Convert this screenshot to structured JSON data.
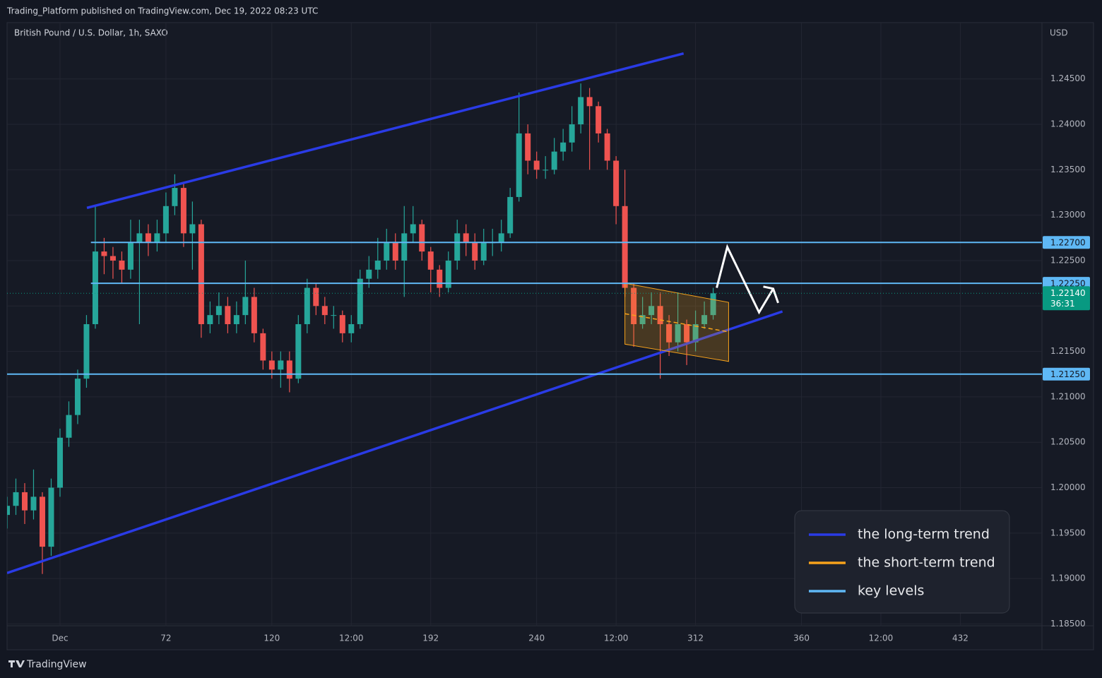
{
  "chart_data": {
    "type": "candlestick",
    "header": "Trading_Platform published on TradingView.com, Dec 19, 2022 08:23 UTC",
    "title": "British Pound / U.S. Dollar, 1h, SAXO",
    "currency": "USD",
    "brand": "TradingView",
    "up_color": "#26a69a",
    "down_color": "#ef5350",
    "grid": true,
    "xlim": [
      0,
      469
    ],
    "xticks": [
      {
        "value": 24,
        "label": "Dec"
      },
      72,
      120,
      {
        "value": 156,
        "label": "12:00"
      },
      192,
      240,
      {
        "value": 276,
        "label": "12:00"
      },
      312,
      360,
      {
        "value": 396,
        "label": "12:00"
      },
      432
    ],
    "ylim": [
      1.1848,
      1.2512
    ],
    "yticks": [
      {
        "value": 1.185,
        "label": "1.18500"
      },
      {
        "value": 1.19,
        "label": "1.19000"
      },
      {
        "value": 1.195,
        "label": "1.19500"
      },
      {
        "value": 1.2,
        "label": "1.20000"
      },
      {
        "value": 1.205,
        "label": "1.20500"
      },
      {
        "value": 1.21,
        "label": "1.21000"
      },
      {
        "value": 1.215,
        "label": "1.21500"
      },
      {
        "value": 1.22,
        "label": "1.22000"
      },
      {
        "value": 1.225,
        "label": "1.22500"
      },
      {
        "value": 1.23,
        "label": "1.23000"
      },
      {
        "value": 1.235,
        "label": "1.23500"
      },
      {
        "value": 1.24,
        "label": "1.24000"
      },
      {
        "value": 1.245,
        "label": "1.24500"
      }
    ],
    "x": [
      0,
      4,
      8,
      12,
      16,
      20,
      24,
      28,
      32,
      36,
      40,
      44,
      48,
      52,
      56,
      60,
      64,
      68,
      72,
      76,
      80,
      84,
      88,
      92,
      96,
      100,
      104,
      108,
      112,
      116,
      120,
      124,
      128,
      132,
      136,
      140,
      144,
      148,
      152,
      156,
      160,
      164,
      168,
      172,
      176,
      180,
      184,
      188,
      192,
      196,
      200,
      204,
      208,
      212,
      216,
      220,
      224,
      228,
      232,
      236,
      240,
      244,
      248,
      252,
      256,
      260,
      264,
      268,
      272,
      276,
      280,
      284,
      288,
      292,
      296,
      300,
      304,
      308,
      312,
      316,
      320
    ],
    "open": [
      1.197,
      1.198,
      1.1995,
      1.1975,
      1.199,
      1.1935,
      1.2,
      1.2055,
      1.208,
      1.212,
      1.218,
      1.226,
      1.2255,
      1.225,
      1.224,
      1.227,
      1.228,
      1.227,
      1.228,
      1.231,
      1.233,
      1.228,
      1.229,
      1.218,
      1.219,
      1.22,
      1.218,
      1.219,
      1.221,
      1.217,
      1.214,
      1.213,
      1.214,
      1.212,
      1.218,
      1.222,
      1.22,
      1.219,
      1.219,
      1.217,
      1.218,
      1.223,
      1.224,
      1.225,
      1.227,
      1.225,
      1.228,
      1.229,
      1.226,
      1.224,
      1.222,
      1.225,
      1.228,
      1.227,
      1.225,
      1.227,
      1.227,
      1.228,
      1.232,
      1.239,
      1.236,
      1.235,
      1.235,
      1.237,
      1.238,
      1.24,
      1.243,
      1.242,
      1.239,
      1.236,
      1.231,
      1.222,
      1.218,
      1.219,
      1.22,
      1.218,
      1.216,
      1.218,
      1.216,
      1.218,
      1.219
    ],
    "high": [
      1.199,
      1.201,
      1.2005,
      1.202,
      1.1995,
      1.201,
      1.2065,
      1.2095,
      1.213,
      1.219,
      1.231,
      1.2275,
      1.2265,
      1.226,
      1.2295,
      1.2295,
      1.229,
      1.2295,
      1.2325,
      1.2345,
      1.2335,
      1.2315,
      1.2295,
      1.2205,
      1.2215,
      1.221,
      1.2205,
      1.225,
      1.222,
      1.2175,
      1.215,
      1.215,
      1.215,
      1.219,
      1.223,
      1.2225,
      1.221,
      1.22,
      1.2195,
      1.219,
      1.224,
      1.2255,
      1.2275,
      1.2285,
      1.228,
      1.231,
      1.231,
      1.2295,
      1.2265,
      1.2245,
      1.226,
      1.2295,
      1.229,
      1.228,
      1.2285,
      1.2285,
      1.2295,
      1.233,
      1.2435,
      1.24,
      1.237,
      1.2365,
      1.2385,
      1.2395,
      1.242,
      1.2445,
      1.244,
      1.2425,
      1.2395,
      1.2365,
      1.235,
      1.2225,
      1.221,
      1.2215,
      1.2215,
      1.219,
      1.2215,
      1.2185,
      1.2195,
      1.2205,
      1.222
    ],
    "low": [
      1.1955,
      1.197,
      1.196,
      1.1965,
      1.1905,
      1.1925,
      1.199,
      1.2045,
      1.207,
      1.211,
      1.2175,
      1.2235,
      1.223,
      1.2225,
      1.223,
      1.218,
      1.2255,
      1.226,
      1.227,
      1.23,
      1.2265,
      1.224,
      1.2165,
      1.217,
      1.218,
      1.217,
      1.217,
      1.218,
      1.216,
      1.213,
      1.212,
      1.211,
      1.2105,
      1.2115,
      1.217,
      1.219,
      1.218,
      1.2175,
      1.216,
      1.216,
      1.2175,
      1.222,
      1.223,
      1.224,
      1.224,
      1.221,
      1.227,
      1.225,
      1.2215,
      1.221,
      1.2215,
      1.224,
      1.2255,
      1.224,
      1.2245,
      1.2255,
      1.226,
      1.2275,
      1.2315,
      1.2345,
      1.234,
      1.234,
      1.2345,
      1.236,
      1.237,
      1.239,
      1.235,
      1.238,
      1.235,
      1.229,
      1.221,
      1.2155,
      1.2175,
      1.218,
      1.212,
      1.2145,
      1.215,
      1.2135,
      1.215,
      1.2175,
      1.2185
    ],
    "close": [
      1.198,
      1.1995,
      1.1975,
      1.199,
      1.1935,
      1.2,
      1.2055,
      1.208,
      1.212,
      1.218,
      1.226,
      1.2255,
      1.225,
      1.224,
      1.227,
      1.228,
      1.227,
      1.228,
      1.231,
      1.233,
      1.228,
      1.229,
      1.218,
      1.219,
      1.22,
      1.218,
      1.219,
      1.221,
      1.217,
      1.214,
      1.213,
      1.214,
      1.212,
      1.218,
      1.222,
      1.22,
      1.219,
      1.219,
      1.217,
      1.218,
      1.223,
      1.224,
      1.225,
      1.227,
      1.225,
      1.228,
      1.229,
      1.226,
      1.224,
      1.222,
      1.225,
      1.228,
      1.227,
      1.225,
      1.227,
      1.227,
      1.228,
      1.232,
      1.239,
      1.236,
      1.235,
      1.235,
      1.237,
      1.238,
      1.24,
      1.243,
      1.242,
      1.239,
      1.236,
      1.231,
      1.222,
      1.218,
      1.219,
      1.22,
      1.218,
      1.216,
      1.218,
      1.216,
      1.218,
      1.219,
      1.2214
    ],
    "last_price": {
      "value": 1.2214,
      "label": "1.22140",
      "countdown": "36:31",
      "color": "#089981"
    },
    "drawings": [
      {
        "type": "trendline",
        "name": "the long-term trend",
        "color": "#2a3be6",
        "lines": [
          {
            "x": [
              36.2,
              306.6
            ],
            "y": [
              1.2308,
              1.2478
            ]
          },
          {
            "x": [
              0,
              351.4
            ],
            "y": [
              1.1906,
              1.2194
            ]
          }
        ]
      },
      {
        "type": "channel",
        "name": "the short-term trend",
        "color": "#f7a21b",
        "x": [
          280,
          327
        ],
        "upper": [
          1.2225,
          1.2204
        ],
        "lower": [
          1.2158,
          1.2139
        ]
      },
      {
        "type": "levels",
        "name": "key levels",
        "color": "#5fb8f5",
        "levels": [
          {
            "value": 1.227,
            "label": "1.22700",
            "x_start": 38
          },
          {
            "value": 1.2225,
            "label": "1.22250",
            "x_start": 38
          },
          {
            "value": 1.2125,
            "label": "1.21250",
            "x_start": 0
          }
        ]
      }
    ],
    "projection": {
      "color": "#ffffff",
      "x": [
        321.6,
        326.4,
        340.8,
        347.2
      ],
      "y": [
        1.222,
        1.2265,
        1.2193,
        1.2219
      ]
    },
    "legend": "bottom-right"
  }
}
